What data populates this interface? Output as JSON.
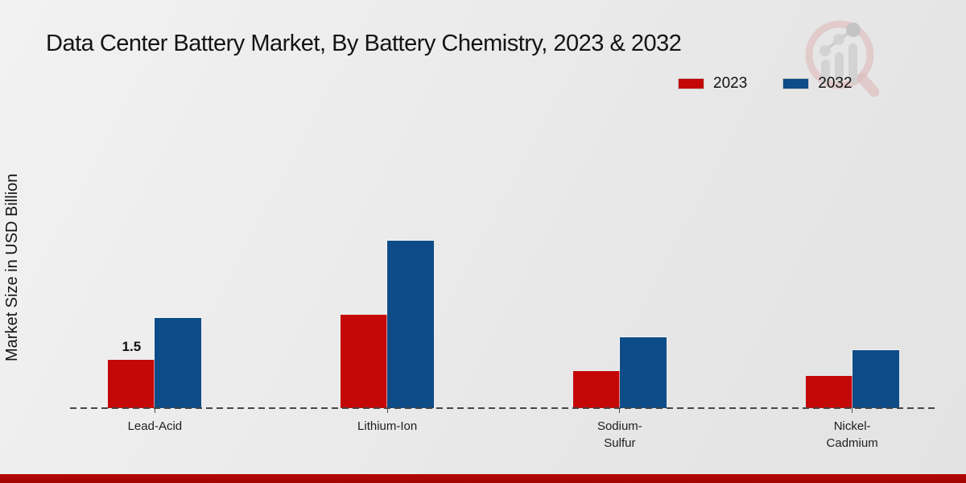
{
  "title": "Data Center Battery Market, By Battery Chemistry, 2023 & 2032",
  "colors": {
    "series_2023": "#c40707",
    "series_2032": "#0e4c87",
    "footer_bar": "#b30606",
    "baseline": "#4a4a4a"
  },
  "chart_data": {
    "type": "bar",
    "title": "Data Center Battery Market, By Battery Chemistry, 2023 & 2032",
    "ylabel": "Market Size in USD Billion",
    "xlabel": "",
    "categories": [
      "Lead-Acid",
      "Lithium-Ion",
      "Sodium-\nSulfur",
      "Nickel-\nCadmium"
    ],
    "series": [
      {
        "name": "2023",
        "color": "#c40707",
        "values": [
          1.5,
          2.9,
          1.15,
          1.0
        ]
      },
      {
        "name": "2032",
        "color": "#0e4c87",
        "values": [
          2.8,
          5.2,
          2.2,
          1.8
        ]
      }
    ],
    "annotations": [
      {
        "category_index": 0,
        "series_index": 0,
        "text": "1.5"
      }
    ],
    "ylim": [
      0,
      6
    ],
    "grid": false,
    "axis_style": "dashed-baseline-only",
    "legend_position": "top-right"
  }
}
